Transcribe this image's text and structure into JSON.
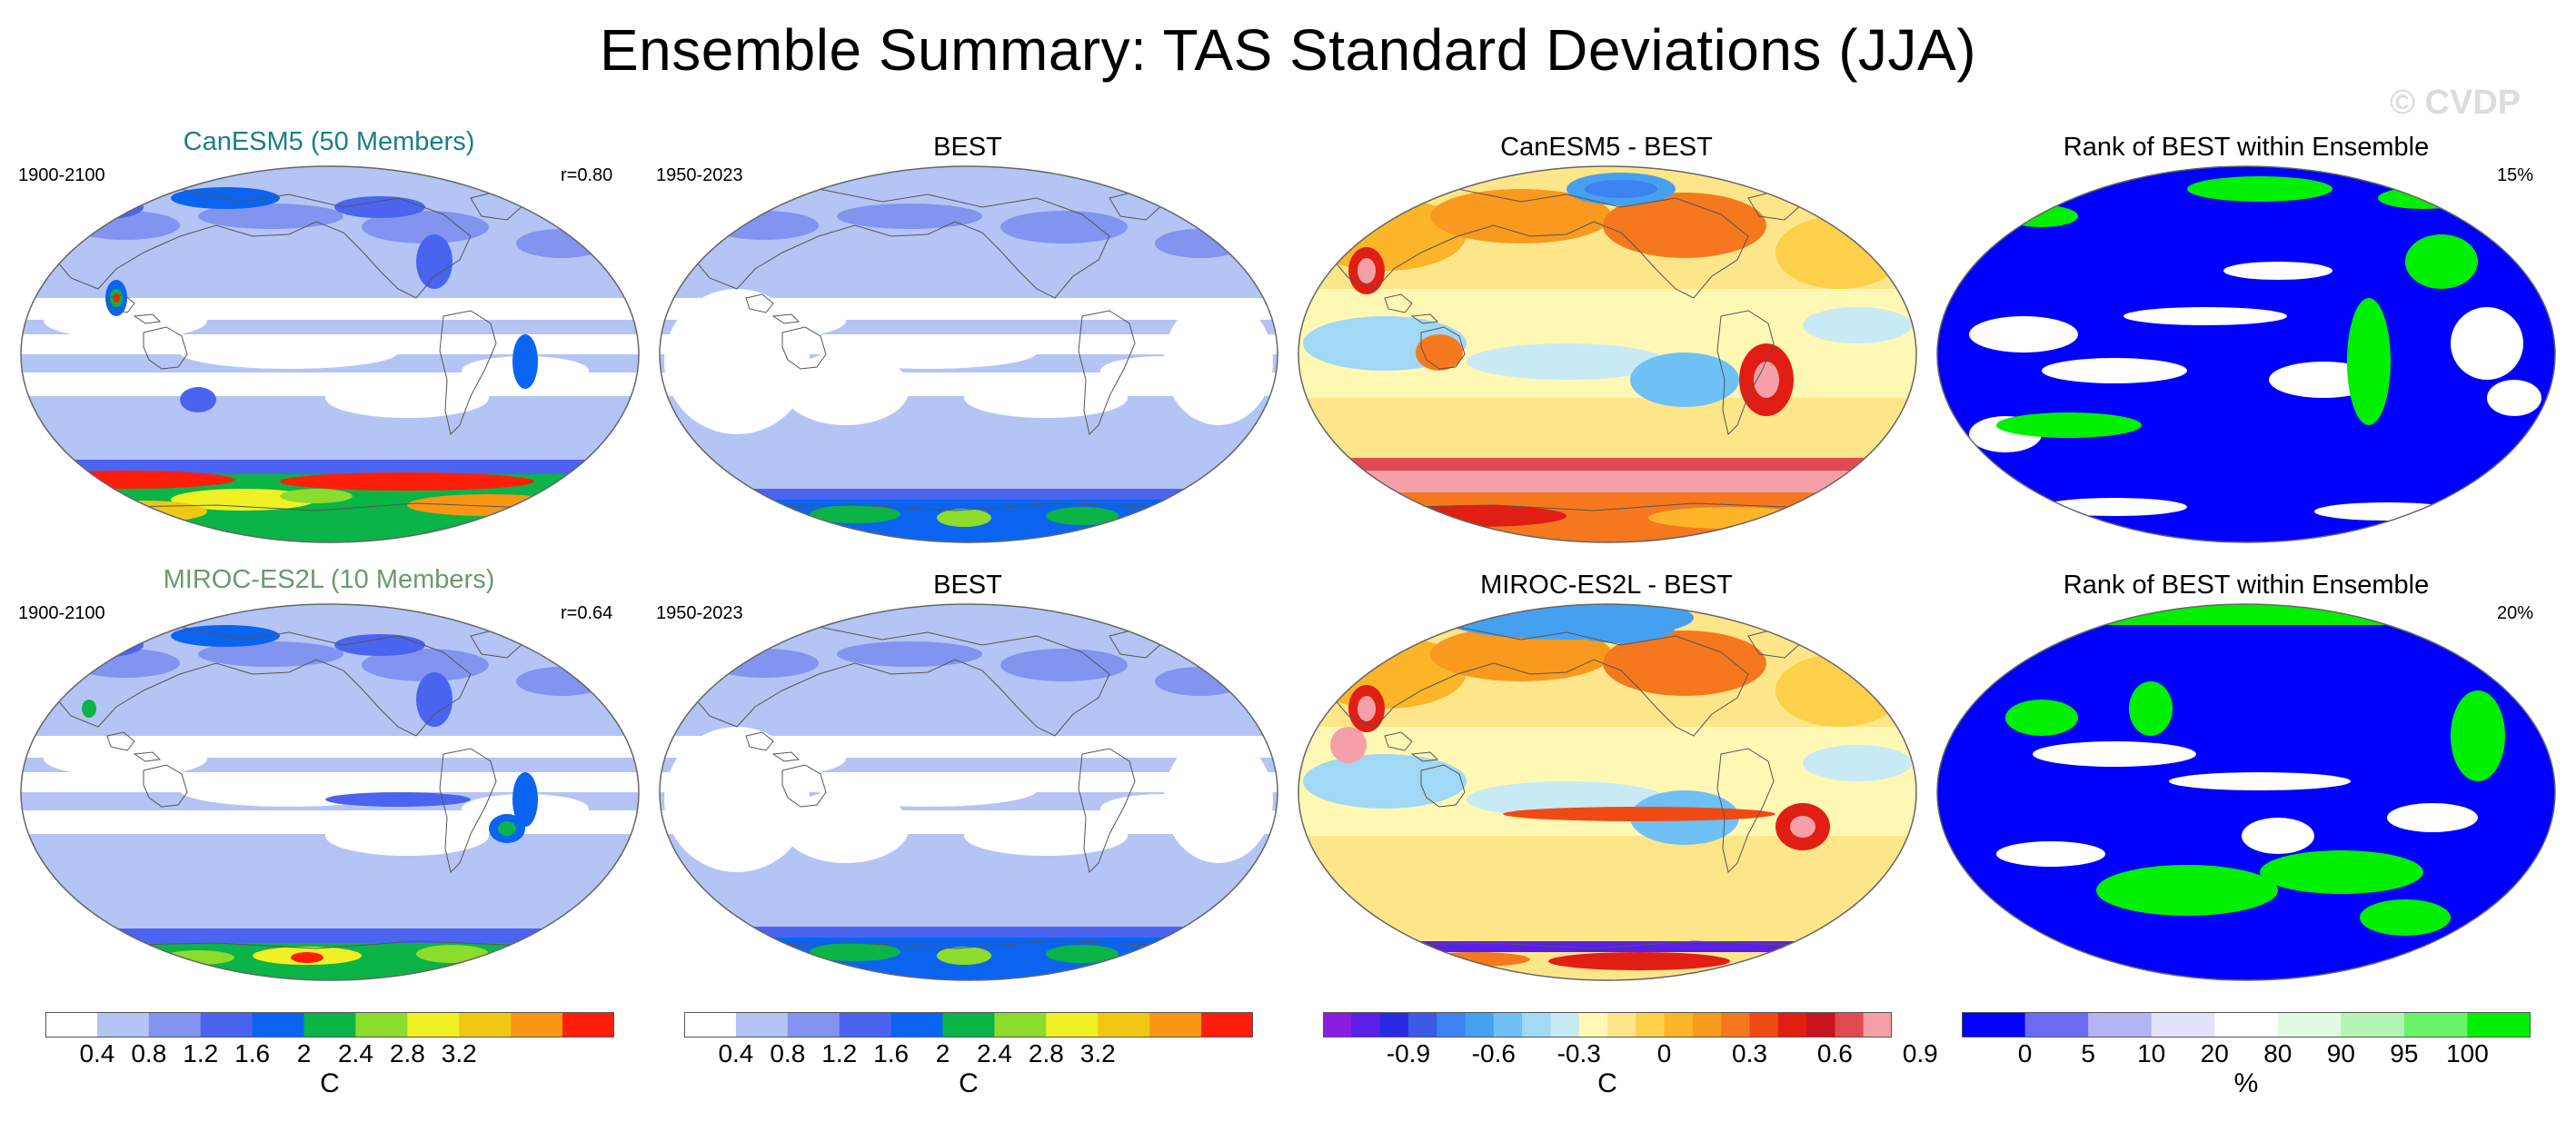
{
  "title": "Ensemble Summary: TAS Standard Deviations (JJA)",
  "watermark": "© CVDP",
  "rows": [
    {
      "model_title": "CanESM5 (50 Members)",
      "model_color": "#1a7f86",
      "model_period": "1900-2100",
      "model_r": "r=0.80",
      "obs_title": "BEST",
      "obs_period": "1950-2023",
      "diff_title": "CanESM5 - BEST",
      "rank_title": "Rank of BEST within Ensemble",
      "rank_pct": "15%"
    },
    {
      "model_title": "MIROC-ES2L (10 Members)",
      "model_color": "#6a9a6e",
      "model_period": "1900-2100",
      "model_r": "r=0.64",
      "obs_title": "BEST",
      "obs_period": "1950-2023",
      "diff_title": "MIROC-ES2L - BEST",
      "rank_title": "Rank of BEST within Ensemble",
      "rank_pct": "20%"
    }
  ],
  "colorbars": [
    {
      "name": "std",
      "colors": [
        "#ffffff",
        "#b4c4f4",
        "#8294f0",
        "#4a64f0",
        "#0a64f0",
        "#0ab446",
        "#8cdc2e",
        "#f0f024",
        "#f0c814",
        "#fa9614",
        "#ff1e0a"
      ],
      "labels": [
        "0.4",
        "0.8",
        "1.2",
        "1.6",
        "2",
        "2.4",
        "2.8",
        "3.2"
      ],
      "unit": "C"
    },
    {
      "name": "std-obs",
      "colors": [
        "#ffffff",
        "#b4c4f4",
        "#8294f0",
        "#4a64f0",
        "#0a64f0",
        "#0ab446",
        "#8cdc2e",
        "#f0f024",
        "#f0c814",
        "#fa9614",
        "#ff1e0a"
      ],
      "labels": [
        "0.4",
        "0.8",
        "1.2",
        "1.6",
        "2",
        "2.4",
        "2.8",
        "3.2"
      ],
      "unit": "C"
    },
    {
      "name": "difference",
      "colors": [
        "#8a1ee0",
        "#5a1ee6",
        "#2a2ae6",
        "#3c5ae6",
        "#3c82f0",
        "#46a0f0",
        "#6ec0f5",
        "#a0d8f5",
        "#c8eaf5",
        "#fff8b4",
        "#fde68a",
        "#fcd04a",
        "#fcb428",
        "#f99a1e",
        "#f5781e",
        "#f04a14",
        "#e11e14",
        "#c8141e",
        "#e04a50",
        "#f5a0a8"
      ],
      "labels": [
        "-0.9",
        "-0.6",
        "-0.3",
        "0",
        "0.3",
        "0.6",
        "0.9"
      ],
      "unit": "C"
    },
    {
      "name": "rank",
      "colors": [
        "#0000ff",
        "#6a6af2",
        "#b4b4f4",
        "#e2e2fa",
        "#ffffff",
        "#e2fae2",
        "#b4f4b4",
        "#6af26a",
        "#00f000"
      ],
      "labels": [
        "0",
        "5",
        "10",
        "20",
        "80",
        "90",
        "95",
        "100"
      ],
      "unit": "%"
    }
  ]
}
